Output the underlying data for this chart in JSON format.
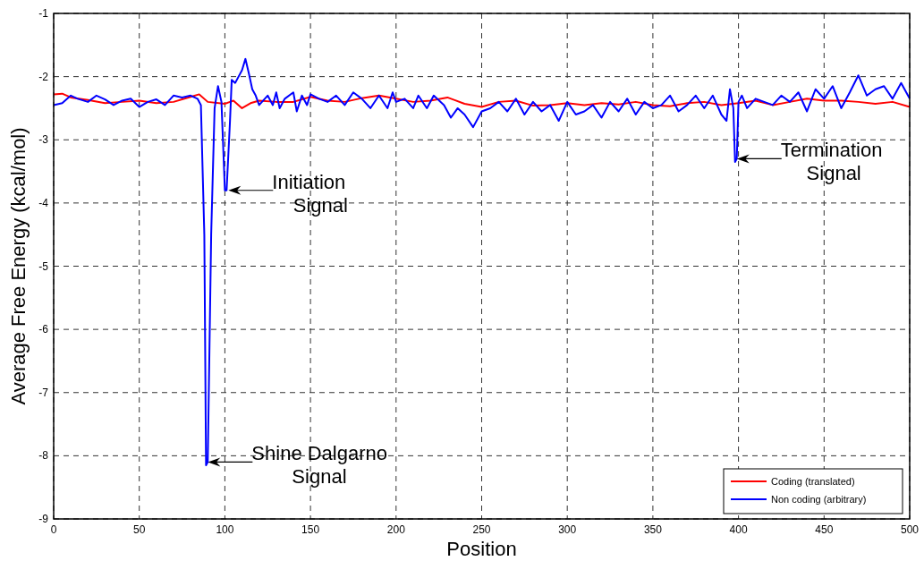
{
  "chart_data": {
    "type": "line",
    "xlabel": "Position",
    "ylabel": "Average Free Energy (kcal/mol)",
    "xlim": [
      0,
      500
    ],
    "xticks": [
      0,
      50,
      100,
      150,
      200,
      250,
      300,
      350,
      400,
      450,
      500
    ],
    "ylim": [
      -9,
      -1
    ],
    "yticks": [
      -9,
      -8,
      -7,
      -6,
      -5,
      -4,
      -3,
      -2,
      -1
    ],
    "grid": true,
    "legend": "bottom right",
    "line_style": "solid",
    "marker": "none",
    "series": [
      {
        "name": "Coding (translated)",
        "color": "#ff0000",
        "x": [
          0,
          5,
          10,
          20,
          30,
          40,
          50,
          60,
          70,
          80,
          85,
          90,
          100,
          105,
          110,
          115,
          120,
          130,
          140,
          150,
          160,
          170,
          180,
          190,
          200,
          210,
          220,
          230,
          240,
          250,
          260,
          270,
          280,
          290,
          300,
          310,
          320,
          330,
          340,
          350,
          360,
          370,
          380,
          390,
          400,
          410,
          420,
          430,
          440,
          450,
          460,
          470,
          480,
          490,
          500
        ],
        "values": [
          -2.28,
          -2.27,
          -2.33,
          -2.37,
          -2.42,
          -2.4,
          -2.38,
          -2.42,
          -2.4,
          -2.32,
          -2.28,
          -2.4,
          -2.43,
          -2.38,
          -2.5,
          -2.42,
          -2.38,
          -2.4,
          -2.4,
          -2.32,
          -2.38,
          -2.4,
          -2.34,
          -2.3,
          -2.35,
          -2.4,
          -2.38,
          -2.33,
          -2.43,
          -2.48,
          -2.4,
          -2.38,
          -2.46,
          -2.45,
          -2.42,
          -2.45,
          -2.42,
          -2.44,
          -2.4,
          -2.45,
          -2.47,
          -2.42,
          -2.4,
          -2.45,
          -2.42,
          -2.38,
          -2.45,
          -2.4,
          -2.35,
          -2.38,
          -2.38,
          -2.4,
          -2.43,
          -2.4,
          -2.48
        ]
      },
      {
        "name": "Non coding (arbitrary)",
        "color": "#0000ff",
        "x": [
          0,
          5,
          10,
          14,
          20,
          25,
          30,
          35,
          40,
          45,
          50,
          55,
          60,
          65,
          70,
          75,
          80,
          84,
          86,
          88,
          89,
          90,
          92,
          94,
          96,
          98,
          100,
          101,
          103,
          104,
          106,
          108,
          110,
          112,
          114,
          116,
          118,
          120,
          125,
          128,
          130,
          132,
          135,
          140,
          142,
          145,
          148,
          150,
          155,
          160,
          165,
          170,
          175,
          180,
          185,
          190,
          195,
          198,
          200,
          205,
          210,
          213,
          218,
          222,
          228,
          232,
          236,
          240,
          245,
          250,
          255,
          260,
          265,
          270,
          275,
          280,
          285,
          290,
          295,
          300,
          305,
          310,
          315,
          320,
          325,
          330,
          335,
          340,
          345,
          350,
          355,
          360,
          365,
          370,
          375,
          380,
          385,
          390,
          393,
          395,
          397,
          398,
          399,
          400,
          402,
          405,
          410,
          415,
          420,
          425,
          430,
          435,
          440,
          445,
          450,
          455,
          460,
          465,
          470,
          475,
          480,
          485,
          490,
          495,
          500
        ],
        "values": [
          -2.45,
          -2.42,
          -2.3,
          -2.35,
          -2.4,
          -2.3,
          -2.36,
          -2.45,
          -2.38,
          -2.35,
          -2.48,
          -2.4,
          -2.36,
          -2.45,
          -2.3,
          -2.33,
          -2.3,
          -2.35,
          -2.45,
          -4.5,
          -8.15,
          -8.1,
          -4.5,
          -2.5,
          -2.15,
          -2.4,
          -3.8,
          -3.8,
          -2.7,
          -2.05,
          -2.1,
          -2.0,
          -1.9,
          -1.72,
          -1.95,
          -2.2,
          -2.3,
          -2.45,
          -2.3,
          -2.45,
          -2.25,
          -2.5,
          -2.35,
          -2.25,
          -2.55,
          -2.3,
          -2.45,
          -2.28,
          -2.35,
          -2.4,
          -2.3,
          -2.45,
          -2.25,
          -2.35,
          -2.5,
          -2.3,
          -2.5,
          -2.25,
          -2.4,
          -2.35,
          -2.5,
          -2.3,
          -2.5,
          -2.3,
          -2.45,
          -2.65,
          -2.5,
          -2.6,
          -2.8,
          -2.55,
          -2.5,
          -2.4,
          -2.55,
          -2.35,
          -2.6,
          -2.4,
          -2.55,
          -2.45,
          -2.7,
          -2.4,
          -2.6,
          -2.55,
          -2.45,
          -2.65,
          -2.4,
          -2.55,
          -2.35,
          -2.6,
          -2.4,
          -2.5,
          -2.45,
          -2.3,
          -2.55,
          -2.45,
          -2.3,
          -2.5,
          -2.3,
          -2.6,
          -2.7,
          -2.2,
          -2.5,
          -3.35,
          -3.3,
          -2.4,
          -2.3,
          -2.5,
          -2.35,
          -2.4,
          -2.45,
          -2.3,
          -2.4,
          -2.25,
          -2.55,
          -2.2,
          -2.35,
          -2.15,
          -2.5,
          -2.25,
          -1.98,
          -2.3,
          -2.2,
          -2.15,
          -2.35,
          -2.1,
          -2.35
        ]
      }
    ],
    "annotations": [
      {
        "text": "Initiation Signal",
        "x": 101,
        "y": -3.8
      },
      {
        "text": "Shine Dalgarno Signal",
        "x": 89,
        "y": -8.1
      },
      {
        "text": "Termination Signal",
        "x": 398,
        "y": -3.3
      }
    ]
  }
}
